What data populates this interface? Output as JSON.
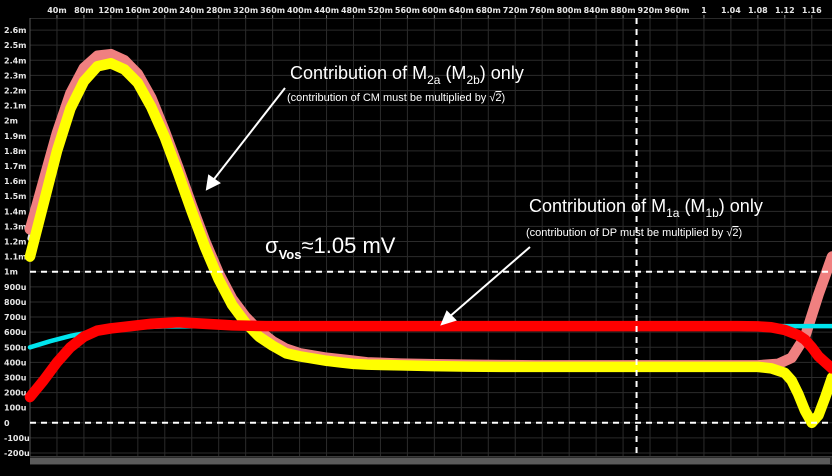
{
  "chart_data": {
    "type": "line",
    "x_tick_labels": [
      "40m",
      "80m",
      "120m",
      "160m",
      "200m",
      "240m",
      "280m",
      "320m",
      "360m",
      "400m",
      "440m",
      "480m",
      "520m",
      "560m",
      "600m",
      "640m",
      "680m",
      "720m",
      "760m",
      "800m",
      "840m",
      "880m",
      "920m",
      "960m",
      "1",
      "1.04",
      "1.08",
      "1.12",
      "1.16"
    ],
    "x_ticks": [
      0.04,
      0.08,
      0.12,
      0.16,
      0.2,
      0.24,
      0.28,
      0.32,
      0.36,
      0.4,
      0.44,
      0.48,
      0.52,
      0.56,
      0.6,
      0.64,
      0.68,
      0.72,
      0.76,
      0.8,
      0.84,
      0.88,
      0.92,
      0.96,
      1.0,
      1.04,
      1.08,
      1.12,
      1.16
    ],
    "y_tick_labels": [
      "2.6m",
      "2.5m",
      "2.4m",
      "2.3m",
      "2.2m",
      "2.1m",
      "2m",
      "1.9m",
      "1.8m",
      "1.7m",
      "1.6m",
      "1.5m",
      "1.4m",
      "1.3m",
      "1.2m",
      "1.1m",
      "1m",
      "900u",
      "800u",
      "700u",
      "600u",
      "500u",
      "400u",
      "300u",
      "200u",
      "100u",
      "0",
      "-100u",
      "-200u"
    ],
    "y_ticks": [
      2.6,
      2.5,
      2.4,
      2.3,
      2.2,
      2.1,
      2.0,
      1.9,
      1.8,
      1.7,
      1.6,
      1.5,
      1.4,
      1.3,
      1.2,
      1.1,
      1.0,
      0.9,
      0.8,
      0.7,
      0.6,
      0.5,
      0.4,
      0.3,
      0.2,
      0.1,
      0.0,
      -0.1,
      -0.2
    ],
    "xlim": [
      0.0,
      1.19
    ],
    "ylim": [
      -0.22,
      2.68
    ],
    "y_unit": "mV",
    "grid": true,
    "x_marker": 0.9,
    "y_markers": [
      1.0,
      0.0
    ],
    "series": [
      {
        "color": "#ffffff",
        "band": 0.035,
        "x": [
          0.0,
          0.02,
          0.04,
          0.06,
          0.08,
          0.1,
          0.12,
          0.14,
          0.16,
          0.18,
          0.2,
          0.22,
          0.24,
          0.26,
          0.28,
          0.3,
          0.32,
          0.34,
          0.36,
          0.38,
          0.4,
          0.42,
          0.44,
          0.46,
          0.48,
          0.5,
          0.55,
          0.6,
          0.65,
          0.7,
          0.75,
          0.8,
          0.85,
          0.9,
          0.95,
          1.0,
          1.04,
          1.08,
          1.11,
          1.13,
          1.15,
          1.17,
          1.19
        ],
        "y": [
          1.22,
          1.55,
          1.88,
          2.15,
          2.32,
          2.41,
          2.42,
          2.38,
          2.29,
          2.13,
          1.92,
          1.68,
          1.43,
          1.19,
          0.98,
          0.81,
          0.69,
          0.6,
          0.53,
          0.48,
          0.455,
          0.44,
          0.425,
          0.415,
          0.405,
          0.398,
          0.39,
          0.385,
          0.382,
          0.38,
          0.38,
          0.38,
          0.38,
          0.38,
          0.38,
          0.38,
          0.38,
          0.38,
          0.39,
          0.42,
          0.55,
          0.82,
          1.08
        ]
      },
      {
        "color": "#f08080",
        "band": 0.07,
        "x": [
          0.0,
          0.02,
          0.04,
          0.06,
          0.08,
          0.1,
          0.12,
          0.14,
          0.16,
          0.18,
          0.2,
          0.22,
          0.24,
          0.26,
          0.28,
          0.3,
          0.32,
          0.34,
          0.36,
          0.38,
          0.4,
          0.42,
          0.44,
          0.46,
          0.48,
          0.5,
          0.55,
          0.6,
          0.65,
          0.7,
          0.75,
          0.8,
          0.85,
          0.9,
          0.95,
          1.0,
          1.04,
          1.08,
          1.11,
          1.13,
          1.15,
          1.17,
          1.19
        ],
        "y": [
          1.28,
          1.6,
          1.92,
          2.18,
          2.35,
          2.43,
          2.44,
          2.4,
          2.31,
          2.15,
          1.93,
          1.69,
          1.44,
          1.2,
          0.99,
          0.82,
          0.7,
          0.61,
          0.54,
          0.49,
          0.46,
          0.445,
          0.43,
          0.42,
          0.41,
          0.4,
          0.392,
          0.387,
          0.384,
          0.382,
          0.38,
          0.38,
          0.38,
          0.38,
          0.38,
          0.38,
          0.38,
          0.38,
          0.39,
          0.43,
          0.57,
          0.85,
          1.1
        ]
      },
      {
        "color": "#ffff00",
        "band": 0.07,
        "x": [
          0.0,
          0.02,
          0.04,
          0.06,
          0.08,
          0.1,
          0.12,
          0.14,
          0.16,
          0.18,
          0.2,
          0.22,
          0.24,
          0.26,
          0.28,
          0.3,
          0.32,
          0.34,
          0.36,
          0.38,
          0.4,
          0.42,
          0.44,
          0.46,
          0.48,
          0.5,
          0.55,
          0.6,
          0.65,
          0.7,
          0.75,
          0.8,
          0.85,
          0.9,
          0.95,
          1.0,
          1.04,
          1.08,
          1.1,
          1.12,
          1.13,
          1.14,
          1.15,
          1.16,
          1.17,
          1.18,
          1.19
        ],
        "y": [
          1.1,
          1.45,
          1.8,
          2.08,
          2.26,
          2.36,
          2.38,
          2.34,
          2.25,
          2.09,
          1.89,
          1.65,
          1.4,
          1.16,
          0.95,
          0.78,
          0.66,
          0.57,
          0.51,
          0.46,
          0.44,
          0.425,
          0.41,
          0.4,
          0.39,
          0.385,
          0.38,
          0.375,
          0.372,
          0.37,
          0.37,
          0.37,
          0.37,
          0.37,
          0.37,
          0.37,
          0.37,
          0.37,
          0.36,
          0.33,
          0.28,
          0.19,
          0.08,
          0.0,
          0.05,
          0.17,
          0.3
        ]
      },
      {
        "color": "#00e5ee",
        "band": 0.03,
        "x": [
          0.0,
          0.03,
          0.06,
          0.09,
          0.12,
          0.15,
          0.2,
          0.3,
          0.4,
          0.6,
          0.8,
          1.0,
          1.1,
          1.19
        ],
        "y": [
          0.5,
          0.54,
          0.575,
          0.6,
          0.62,
          0.63,
          0.638,
          0.64,
          0.64,
          0.64,
          0.64,
          0.64,
          0.64,
          0.64
        ]
      },
      {
        "color": "#ff0000",
        "band": 0.07,
        "x": [
          0.0,
          0.02,
          0.04,
          0.06,
          0.08,
          0.1,
          0.12,
          0.14,
          0.18,
          0.22,
          0.26,
          0.3,
          0.35,
          0.4,
          0.5,
          0.6,
          0.7,
          0.8,
          0.9,
          1.0,
          1.05,
          1.08,
          1.1,
          1.12,
          1.14,
          1.15,
          1.16,
          1.17,
          1.18,
          1.19
        ],
        "y": [
          0.17,
          0.28,
          0.4,
          0.5,
          0.57,
          0.61,
          0.625,
          0.635,
          0.655,
          0.665,
          0.655,
          0.645,
          0.64,
          0.64,
          0.64,
          0.64,
          0.64,
          0.64,
          0.64,
          0.64,
          0.64,
          0.638,
          0.632,
          0.615,
          0.58,
          0.55,
          0.5,
          0.44,
          0.4,
          0.36
        ]
      }
    ]
  },
  "annotations": {
    "m2": {
      "title_pre": "Contribution of M",
      "title_sub1": "2a",
      "title_mid": " (M",
      "title_sub2": "2b",
      "title_post": ") only",
      "note_pre": "(contribution of CM must be multiplied by ",
      "note_radical": "√",
      "note_radicand": "2",
      "note_post": ")"
    },
    "m1": {
      "title_pre": "Contribution of M",
      "title_sub1": "1a",
      "title_mid": " (M",
      "title_sub2": "1b",
      "title_post": ") only",
      "note_pre": "(contribution of DP must be multiplied by ",
      "note_radical": "√",
      "note_radicand": "2",
      "note_post": ")"
    },
    "sigma": {
      "symbol": "σ",
      "sub": "Vos",
      "text": "≈1.05 mV"
    }
  }
}
